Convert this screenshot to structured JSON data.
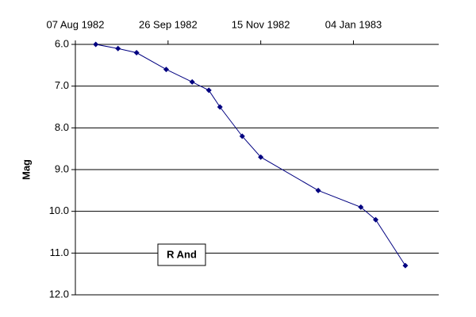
{
  "chart_data": {
    "type": "line",
    "y_label": "Mag",
    "annotation": "R And",
    "x": [
      "1982-08-18",
      "1982-08-30",
      "1982-09-09",
      "1982-09-25",
      "1982-10-09",
      "1982-10-18",
      "1982-10-24",
      "1982-11-05",
      "1982-11-15",
      "1982-12-16",
      "1983-01-08",
      "1983-01-16",
      "1983-02-01"
    ],
    "series": [
      {
        "name": "R And",
        "color": "#000080",
        "values": [
          6.0,
          6.1,
          6.2,
          6.6,
          6.9,
          7.1,
          7.5,
          8.2,
          8.7,
          9.5,
          9.9,
          10.2,
          11.3
        ]
      }
    ],
    "xlim": [
      "1982-08-07",
      "1983-02-19"
    ],
    "xticks": [
      {
        "value": "1982-08-07",
        "label": "07 Aug 1982"
      },
      {
        "value": "1982-09-26",
        "label": "26 Sep 1982"
      },
      {
        "value": "1982-11-15",
        "label": "15 Nov 1982"
      },
      {
        "value": "1983-01-04",
        "label": "04 Jan 1983"
      }
    ],
    "ylim": [
      6,
      12
    ],
    "y_inverted": true,
    "yticks": [
      {
        "value": 6,
        "label": "6.0"
      },
      {
        "value": 7,
        "label": "7.0"
      },
      {
        "value": 8,
        "label": "8.0"
      },
      {
        "value": 9,
        "label": "9.0"
      },
      {
        "value": 10,
        "label": "10.0"
      },
      {
        "value": 11,
        "label": "11.0"
      },
      {
        "value": 12,
        "label": "12.0"
      }
    ],
    "grid": true
  }
}
